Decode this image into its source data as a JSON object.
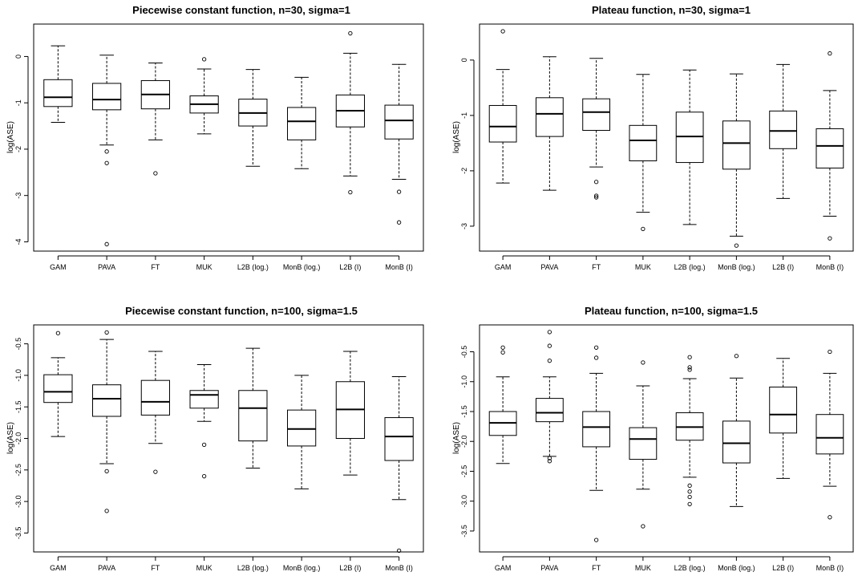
{
  "chart_data": [
    {
      "type": "box",
      "title": "Piecewise constant function, n=30, sigma=1",
      "xlabel": "",
      "ylabel": "log(ASE)",
      "categories": [
        "GAM",
        "PAVA",
        "FT",
        "MUK",
        "L2B (log.)",
        "MonB (log.)",
        "L2B (I)",
        "MonB (I)"
      ],
      "ylim": [
        -4.2,
        0.7
      ],
      "yticks": [
        0,
        -1,
        -2,
        -3,
        -4
      ],
      "boxes": [
        {
          "whislo": -1.42,
          "q1": -1.08,
          "med": -0.88,
          "q3": -0.5,
          "whishi": 0.23,
          "fliers": []
        },
        {
          "whislo": -1.91,
          "q1": -1.15,
          "med": -0.93,
          "q3": -0.58,
          "whishi": 0.03,
          "fliers": [
            -2.05,
            -2.3,
            -4.05
          ]
        },
        {
          "whislo": -1.8,
          "q1": -1.13,
          "med": -0.82,
          "q3": -0.52,
          "whishi": -0.14,
          "fliers": [
            -2.52
          ]
        },
        {
          "whislo": -1.67,
          "q1": -1.22,
          "med": -1.03,
          "q3": -0.85,
          "whishi": -0.27,
          "fliers": [
            -0.06
          ]
        },
        {
          "whislo": -2.37,
          "q1": -1.5,
          "med": -1.22,
          "q3": -0.92,
          "whishi": -0.28,
          "fliers": []
        },
        {
          "whislo": -2.42,
          "q1": -1.8,
          "med": -1.4,
          "q3": -1.1,
          "whishi": -0.45,
          "fliers": []
        },
        {
          "whislo": -2.58,
          "q1": -1.52,
          "med": -1.17,
          "q3": -0.83,
          "whishi": 0.07,
          "fliers": [
            0.5,
            -2.93
          ]
        },
        {
          "whislo": -2.65,
          "q1": -1.78,
          "med": -1.38,
          "q3": -1.05,
          "whishi": -0.17,
          "fliers": [
            -2.92,
            -3.58
          ]
        }
      ]
    },
    {
      "type": "box",
      "title": "Plateau function, n=30, sigma=1",
      "xlabel": "",
      "ylabel": "log(ASE)",
      "categories": [
        "GAM",
        "PAVA",
        "FT",
        "MUK",
        "L2B (log.)",
        "MonB (log.)",
        "L2B (I)",
        "MonB (I)"
      ],
      "ylim": [
        -3.45,
        0.65
      ],
      "yticks": [
        0,
        -1,
        -2,
        -3
      ],
      "boxes": [
        {
          "whislo": -2.22,
          "q1": -1.48,
          "med": -1.2,
          "q3": -0.82,
          "whishi": -0.17,
          "fliers": [
            0.52
          ]
        },
        {
          "whislo": -2.35,
          "q1": -1.38,
          "med": -0.97,
          "q3": -0.68,
          "whishi": 0.06,
          "fliers": []
        },
        {
          "whislo": -1.93,
          "q1": -1.27,
          "med": -0.94,
          "q3": -0.7,
          "whishi": 0.03,
          "fliers": [
            -2.2,
            -2.45,
            -2.48
          ]
        },
        {
          "whislo": -2.75,
          "q1": -1.82,
          "med": -1.45,
          "q3": -1.18,
          "whishi": -0.26,
          "fliers": [
            -3.05
          ]
        },
        {
          "whislo": -2.97,
          "q1": -1.85,
          "med": -1.38,
          "q3": -0.94,
          "whishi": -0.18,
          "fliers": []
        },
        {
          "whislo": -3.18,
          "q1": -1.97,
          "med": -1.5,
          "q3": -1.1,
          "whishi": -0.25,
          "fliers": [
            -3.35
          ]
        },
        {
          "whislo": -2.5,
          "q1": -1.6,
          "med": -1.28,
          "q3": -0.92,
          "whishi": -0.08,
          "fliers": []
        },
        {
          "whislo": -2.82,
          "q1": -1.95,
          "med": -1.55,
          "q3": -1.24,
          "whishi": -0.55,
          "fliers": [
            0.12,
            -3.22
          ]
        }
      ]
    },
    {
      "type": "box",
      "title": "Piecewise constant function, n=100, sigma=1.5",
      "xlabel": "",
      "ylabel": "log(ASE)",
      "categories": [
        "GAM",
        "PAVA",
        "FT",
        "MUK",
        "L2B (log.)",
        "MonB (log.)",
        "L2B (I)",
        "MonB (I)"
      ],
      "ylim": [
        -3.8,
        -0.2
      ],
      "yticks": [
        -0.5,
        -1.0,
        -1.5,
        -2.0,
        -2.5,
        -3.0,
        -3.5
      ],
      "boxes": [
        {
          "whislo": -1.97,
          "q1": -1.43,
          "med": -1.26,
          "q3": -0.99,
          "whishi": -0.72,
          "fliers": [
            -0.33
          ]
        },
        {
          "whislo": -2.4,
          "q1": -1.65,
          "med": -1.37,
          "q3": -1.15,
          "whishi": -0.43,
          "fliers": [
            -0.32,
            -2.52,
            -3.15
          ]
        },
        {
          "whislo": -2.08,
          "q1": -1.63,
          "med": -1.42,
          "q3": -1.08,
          "whishi": -0.62,
          "fliers": [
            -2.53
          ]
        },
        {
          "whislo": -1.73,
          "q1": -1.52,
          "med": -1.31,
          "q3": -1.24,
          "whishi": -0.83,
          "fliers": [
            -2.1,
            -2.6
          ]
        },
        {
          "whislo": -2.47,
          "q1": -2.04,
          "med": -1.52,
          "q3": -1.24,
          "whishi": -0.57,
          "fliers": []
        },
        {
          "whislo": -2.8,
          "q1": -2.12,
          "med": -1.85,
          "q3": -1.55,
          "whishi": -1.0,
          "fliers": []
        },
        {
          "whislo": -2.58,
          "q1": -2.0,
          "med": -1.54,
          "q3": -1.1,
          "whishi": -0.62,
          "fliers": []
        },
        {
          "whislo": -2.97,
          "q1": -2.35,
          "med": -1.97,
          "q3": -1.67,
          "whishi": -1.02,
          "fliers": [
            -3.78
          ]
        }
      ]
    },
    {
      "type": "box",
      "title": "Plateau function, n=100, sigma=1.5",
      "xlabel": "",
      "ylabel": "log(ASE)",
      "categories": [
        "GAM",
        "PAVA",
        "FT",
        "MUK",
        "L2B (log.)",
        "MonB (log.)",
        "L2B (I)",
        "MonB (I)"
      ],
      "ylim": [
        -3.85,
        -0.05
      ],
      "yticks": [
        -0.5,
        -1.0,
        -1.5,
        -2.0,
        -2.5,
        -3.0,
        -3.5
      ],
      "boxes": [
        {
          "whislo": -2.37,
          "q1": -1.9,
          "med": -1.69,
          "q3": -1.5,
          "whishi": -0.92,
          "fliers": [
            -0.43,
            -0.51
          ]
        },
        {
          "whislo": -2.25,
          "q1": -1.67,
          "med": -1.52,
          "q3": -1.28,
          "whishi": -0.92,
          "fliers": [
            -0.17,
            -0.4,
            -0.65,
            -2.28,
            -2.33
          ]
        },
        {
          "whislo": -2.82,
          "q1": -2.09,
          "med": -1.76,
          "q3": -1.5,
          "whishi": -0.86,
          "fliers": [
            -0.43,
            -0.6,
            -3.65
          ]
        },
        {
          "whislo": -2.8,
          "q1": -2.3,
          "med": -1.96,
          "q3": -1.77,
          "whishi": -1.07,
          "fliers": [
            -0.68,
            -3.42
          ]
        },
        {
          "whislo": -2.6,
          "q1": -1.98,
          "med": -1.76,
          "q3": -1.52,
          "whishi": -0.95,
          "fliers": [
            -0.59,
            -0.76,
            -0.8,
            -2.74,
            -2.84,
            -2.93,
            -3.05
          ]
        },
        {
          "whislo": -3.09,
          "q1": -2.36,
          "med": -2.03,
          "q3": -1.66,
          "whishi": -0.94,
          "fliers": [
            -0.57
          ]
        },
        {
          "whislo": -2.62,
          "q1": -1.86,
          "med": -1.55,
          "q3": -1.09,
          "whishi": -0.61,
          "fliers": []
        },
        {
          "whislo": -2.75,
          "q1": -2.21,
          "med": -1.94,
          "q3": -1.55,
          "whishi": -0.86,
          "fliers": [
            -0.5,
            -3.27
          ]
        }
      ]
    }
  ]
}
